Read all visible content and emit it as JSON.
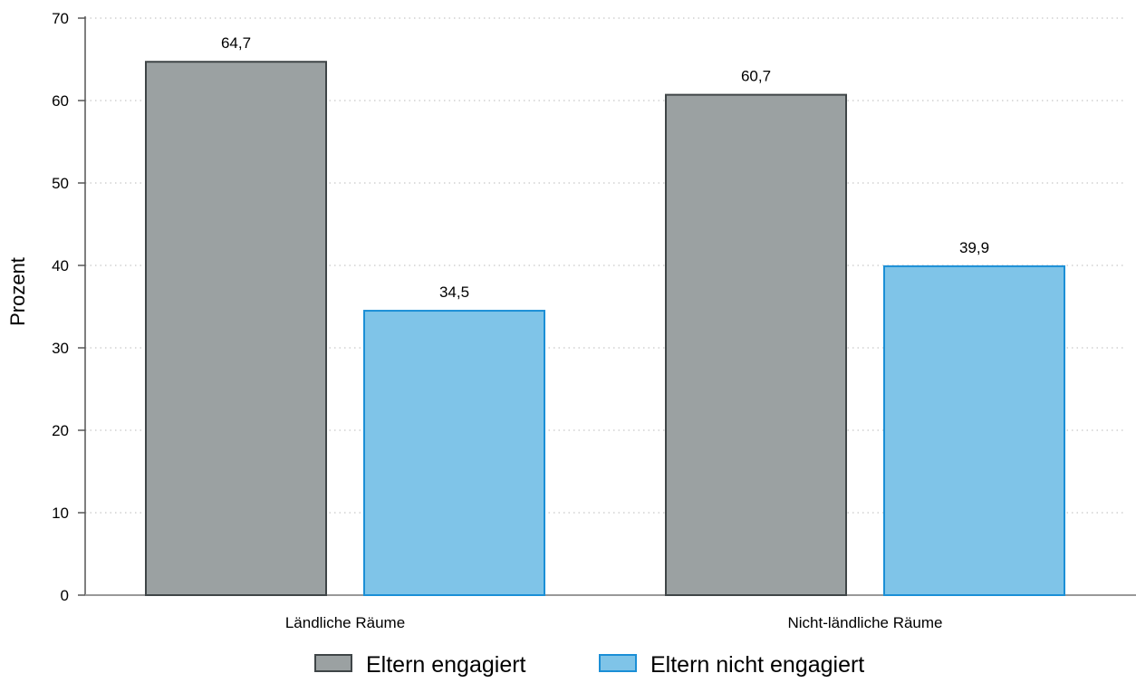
{
  "chart_data": {
    "type": "bar",
    "categories": [
      "Ländliche Räume",
      "Nicht-ländliche Räume"
    ],
    "series": [
      {
        "name": "Eltern engagiert",
        "values": [
          64.7,
          60.7
        ],
        "labels": [
          "64,7",
          "60,7"
        ],
        "color": "#9ba1a2",
        "stroke": "#3f4547"
      },
      {
        "name": "Eltern nicht engagiert",
        "values": [
          34.5,
          39.9
        ],
        "labels": [
          "34,5",
          "39,9"
        ],
        "color": "#7fc4e8",
        "stroke": "#1b8fd6"
      }
    ],
    "title": "",
    "xlabel": "",
    "ylabel": "Prozent",
    "ylim": [
      0,
      70
    ],
    "yticks": [
      0,
      10,
      20,
      30,
      40,
      50,
      60,
      70
    ],
    "grid": "horizontal dotted",
    "legend_position": "bottom"
  }
}
